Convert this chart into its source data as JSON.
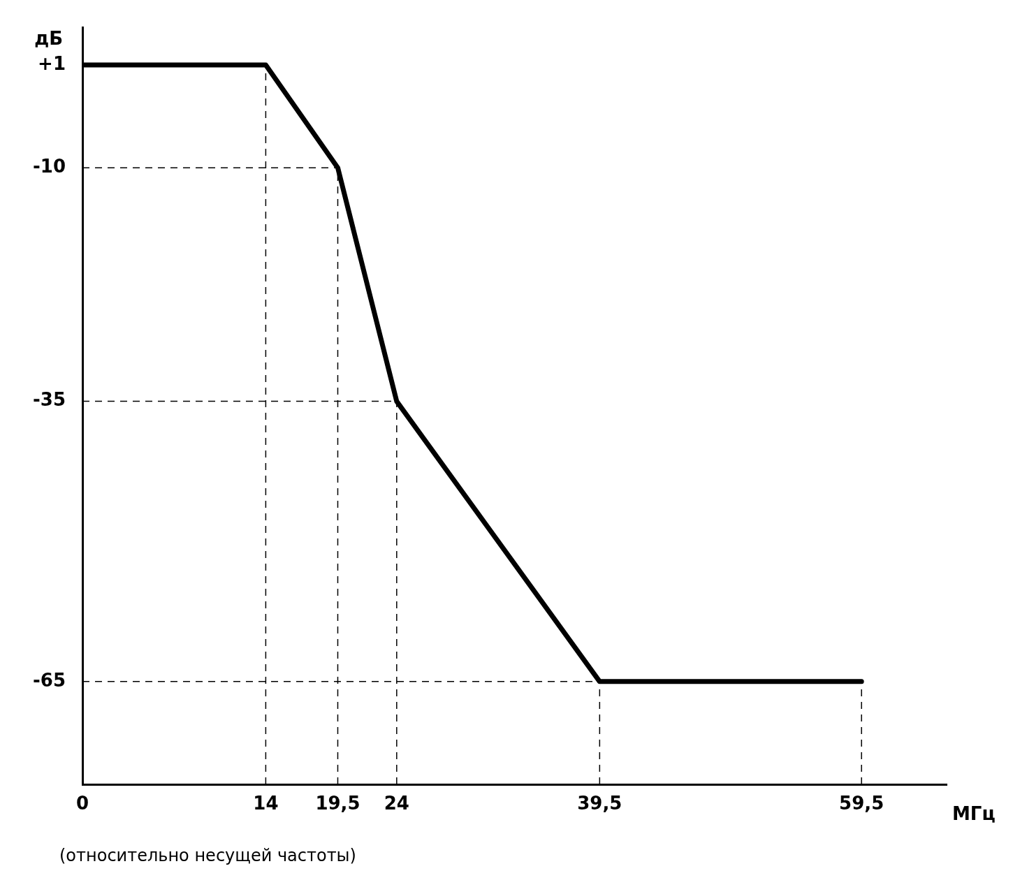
{
  "chart_data": {
    "type": "line",
    "xlabel": "МГц",
    "ylabel": "дБ",
    "annotations": [
      "(относительно несущей частоты)"
    ],
    "x": [
      0,
      14,
      19.5,
      24,
      39.5,
      59.5
    ],
    "series": [
      {
        "color": "#000000",
        "values": [
          1,
          1,
          -10,
          -35,
          -65,
          -65
        ]
      }
    ],
    "xlim": [
      0,
      66
    ],
    "xticks": [
      0,
      14,
      {
        "value": 19.5,
        "label": "19,5"
      },
      24,
      {
        "value": 39.5,
        "label": "39,5"
      },
      {
        "value": 59.5,
        "label": "59,5"
      }
    ],
    "ylim": [
      -76,
      5
    ],
    "yticks": [
      {
        "value": 1,
        "label": "+1"
      },
      -10,
      -35,
      -65
    ],
    "ref_lines": [
      {
        "axis": "y",
        "value": -10,
        "line_style": "dashed",
        "color": "#000000"
      },
      {
        "axis": "y",
        "value": -35,
        "line_style": "dashed",
        "color": "#000000"
      },
      {
        "axis": "y",
        "value": -65,
        "line_style": "dashed",
        "color": "#000000"
      },
      {
        "axis": "x",
        "value": 14,
        "line_style": "dashed",
        "color": "#000000"
      },
      {
        "axis": "x",
        "value": 19.5,
        "line_style": "dashed",
        "color": "#000000"
      },
      {
        "axis": "x",
        "value": 24,
        "line_style": "dashed",
        "color": "#000000"
      },
      {
        "axis": "x",
        "value": 39.5,
        "line_style": "dashed",
        "color": "#000000"
      },
      {
        "axis": "x",
        "value": 59.5,
        "line_style": "dashed",
        "color": "#000000"
      }
    ],
    "grid": false,
    "legend": false,
    "marker": "none",
    "line_style": "solid"
  }
}
